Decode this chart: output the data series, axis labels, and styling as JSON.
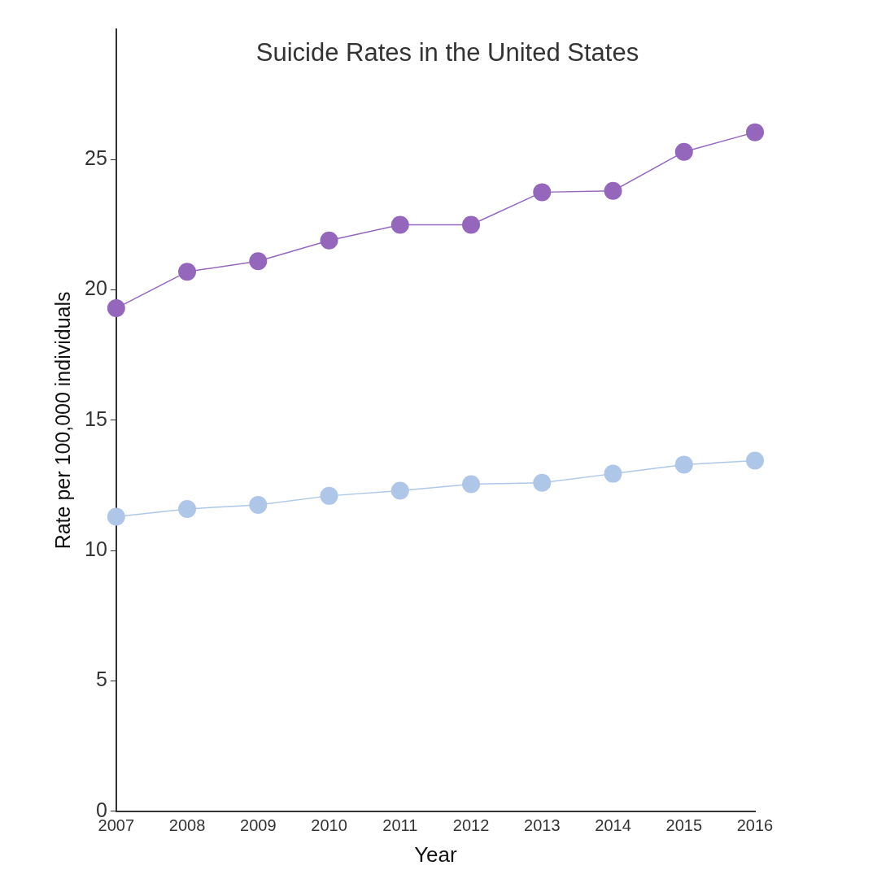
{
  "chart_data": {
    "type": "line",
    "title": "Suicide Rates in the United States",
    "xlabel": "Year",
    "ylabel": "Rate per 100,000 individuals",
    "categories": [
      "2007",
      "2008",
      "2009",
      "2010",
      "2011",
      "2012",
      "2013",
      "2014",
      "2015",
      "2016"
    ],
    "series": [
      {
        "color": "#9467bd",
        "values": [
          19.3,
          20.7,
          21.1,
          21.9,
          22.5,
          22.5,
          23.75,
          23.8,
          25.3,
          26.05
        ]
      },
      {
        "color": "#aec7e8",
        "values": [
          11.3,
          11.6,
          11.75,
          12.1,
          12.3,
          12.55,
          12.6,
          12.95,
          13.3,
          13.45
        ]
      }
    ],
    "ylim": [
      0,
      30
    ],
    "yticks": [
      0,
      5,
      10,
      15,
      20,
      25
    ],
    "grid": false,
    "legend": false,
    "marker": "circle",
    "line_style": "solid"
  }
}
